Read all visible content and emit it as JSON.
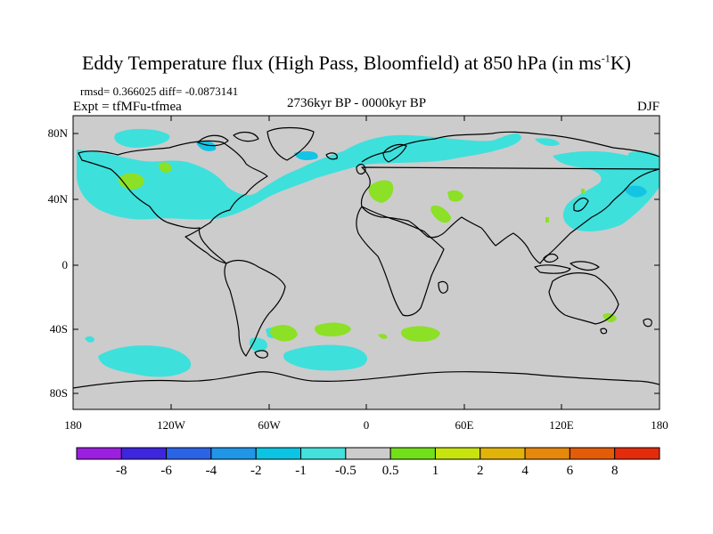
{
  "title": {
    "prefix": "Eddy Temperature flux (High Pass, Bloomfield) at 850 hPa (in ms",
    "exp": "-1",
    "suffix": "K)"
  },
  "stats": "rmsd= 0.366025  diff= -0.0873141",
  "expt": "Expt = tfMFu-tfmea",
  "period": "2736kyr BP - 0000kyr BP",
  "season": "DJF",
  "lat_labels": [
    "80N",
    "40N",
    "0",
    "40S",
    "80S"
  ],
  "lon_labels": [
    "180",
    "120W",
    "60W",
    "0",
    "60E",
    "120E",
    "180"
  ],
  "colorbar": {
    "labels": [
      "-8",
      "-6",
      "-4",
      "-2",
      "-1",
      "-0.5",
      "0.5",
      "1",
      "2",
      "4",
      "6",
      "8"
    ],
    "colors": [
      "#9c1ee0",
      "#3e26de",
      "#2b63e6",
      "#1f96e8",
      "#0bc4e4",
      "#44e0dc",
      "#cccccc",
      "#72e018",
      "#c8e40e",
      "#e2b40a",
      "#e6880a",
      "#e45c08",
      "#e42c0c"
    ]
  },
  "colors": {
    "land_ocean_zero": "#cccccc",
    "positive_weak": "#8ce026",
    "negative_weak": "#3ee0dc",
    "negative_mid": "#14c4e4"
  }
}
